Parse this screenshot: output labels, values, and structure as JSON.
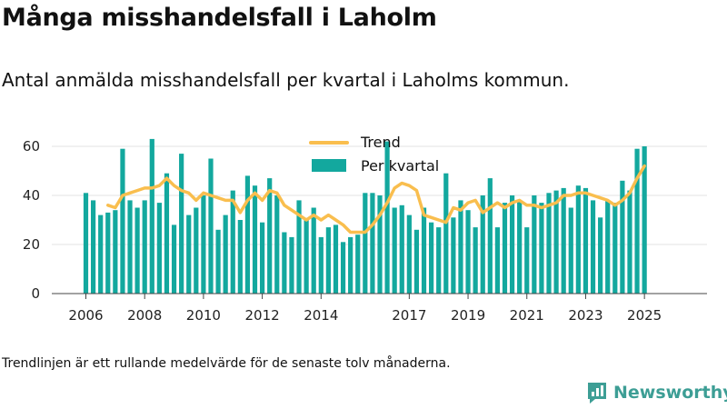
{
  "title": "Många misshandelsfall i Laholm",
  "subtitle": "Antal anmälda misshandelsfall per kvartal i Laholms kommun.",
  "footnote": "Trendlinjen är ett rullande medelvärde för de senaste tolv månaderna.",
  "brand": "Newsworthy",
  "colors": {
    "bar": "#13a89e",
    "trend": "#f9be4e",
    "brand": "#3d9e95"
  },
  "chart_data": {
    "type": "bar",
    "x_ticks": [
      "2006",
      "2008",
      "2010",
      "2012",
      "2014",
      "2017",
      "2019",
      "2021",
      "2023",
      "2025"
    ],
    "y_ticks": [
      "0",
      "20",
      "40",
      "60"
    ],
    "ylim": [
      0,
      65
    ],
    "grid": true,
    "legend_position": "top-center",
    "series": [
      {
        "name": "Per kvartal",
        "type": "bar",
        "x": [
          2006.0,
          2006.25,
          2006.5,
          2006.75,
          2007.0,
          2007.25,
          2007.5,
          2007.75,
          2008.0,
          2008.25,
          2008.5,
          2008.75,
          2009.0,
          2009.25,
          2009.5,
          2009.75,
          2010.0,
          2010.25,
          2010.5,
          2010.75,
          2011.0,
          2011.25,
          2011.5,
          2011.75,
          2012.0,
          2012.25,
          2012.5,
          2012.75,
          2013.0,
          2013.25,
          2013.5,
          2013.75,
          2014.0,
          2014.25,
          2014.5,
          2014.75,
          2015.0,
          2015.25,
          2015.5,
          2015.75,
          2016.0,
          2016.25,
          2016.5,
          2016.75,
          2017.0,
          2017.25,
          2017.5,
          2017.75,
          2018.0,
          2018.25,
          2018.5,
          2018.75,
          2019.0,
          2019.25,
          2019.5,
          2019.75,
          2020.0,
          2020.25,
          2020.5,
          2020.75,
          2021.0,
          2021.25,
          2021.5,
          2021.75,
          2022.0,
          2022.25,
          2022.5,
          2022.75,
          2023.0,
          2023.25,
          2023.5,
          2023.75,
          2024.0,
          2024.25,
          2024.5,
          2024.75,
          2025.0
        ],
        "values": [
          41,
          38,
          32,
          33,
          34,
          59,
          38,
          35,
          38,
          63,
          37,
          49,
          28,
          57,
          32,
          35,
          40,
          55,
          26,
          32,
          42,
          30,
          48,
          44,
          29,
          47,
          40,
          25,
          23,
          38,
          30,
          35,
          23,
          27,
          28,
          21,
          23,
          24,
          41,
          41,
          40,
          62,
          35,
          36,
          32,
          26,
          35,
          29,
          27,
          49,
          31,
          38,
          34,
          27,
          40,
          47,
          27,
          37,
          40,
          38,
          27,
          40,
          37,
          41,
          42,
          43,
          35,
          44,
          43,
          38,
          31,
          38,
          37,
          46,
          42,
          59,
          60
        ]
      },
      {
        "name": "Trend",
        "type": "line",
        "x": [
          2006.75,
          2007.0,
          2007.25,
          2007.5,
          2007.75,
          2008.0,
          2008.25,
          2008.5,
          2008.75,
          2009.0,
          2009.25,
          2009.5,
          2009.75,
          2010.0,
          2010.25,
          2010.5,
          2010.75,
          2011.0,
          2011.25,
          2011.5,
          2011.75,
          2012.0,
          2012.25,
          2012.5,
          2012.75,
          2013.0,
          2013.25,
          2013.5,
          2013.75,
          2014.0,
          2014.25,
          2014.5,
          2014.75,
          2015.0,
          2015.25,
          2015.5,
          2015.75,
          2016.0,
          2016.25,
          2016.5,
          2016.75,
          2017.0,
          2017.25,
          2017.5,
          2017.75,
          2018.0,
          2018.25,
          2018.5,
          2018.75,
          2019.0,
          2019.25,
          2019.5,
          2019.75,
          2020.0,
          2020.25,
          2020.5,
          2020.75,
          2021.0,
          2021.25,
          2021.5,
          2021.75,
          2022.0,
          2022.25,
          2022.5,
          2022.75,
          2023.0,
          2023.25,
          2023.5,
          2023.75,
          2024.0,
          2024.25,
          2024.5,
          2024.75,
          2025.0
        ],
        "values": [
          36,
          35,
          40,
          41,
          42,
          43,
          43,
          44,
          47,
          44,
          42,
          41,
          38,
          41,
          40,
          39,
          38,
          38,
          33,
          38,
          41,
          38,
          42,
          41,
          36,
          34,
          32,
          30,
          32,
          30,
          32,
          30,
          28,
          25,
          25,
          25,
          28,
          32,
          37,
          43,
          45,
          44,
          42,
          32,
          31,
          30,
          29,
          35,
          34,
          37,
          38,
          33,
          35,
          37,
          35,
          37,
          38,
          36,
          36,
          35,
          36,
          37,
          40,
          40,
          41,
          41,
          40,
          39,
          38,
          36,
          38,
          41,
          47,
          52
        ]
      }
    ]
  }
}
